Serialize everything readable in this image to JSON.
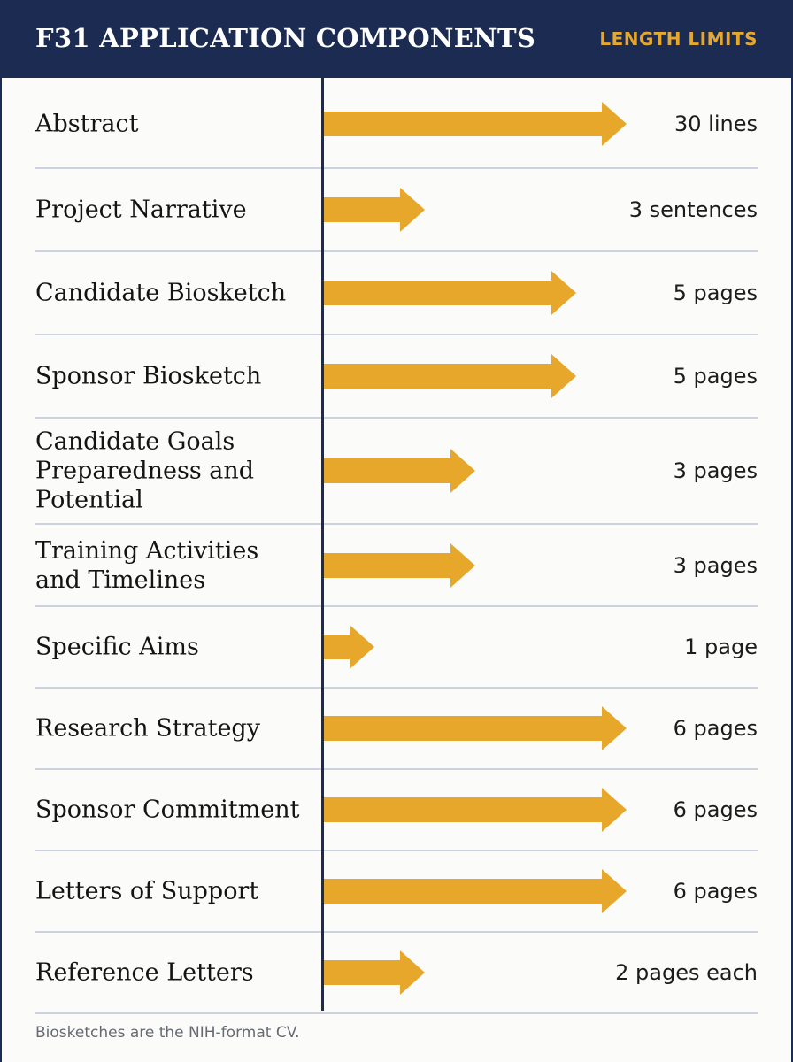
{
  "header": {
    "title": "F31 APPLICATION COMPONENTS",
    "limits_label": "LENGTH LIMITS"
  },
  "colors": {
    "header_bg": "#1b2b52",
    "arrow": "#e6a72b",
    "divider": "#ccd3df"
  },
  "footnote": "Biosketches are the NIH-format CV.",
  "chart_data": {
    "type": "bar",
    "orientation": "horizontal",
    "marker": "arrow",
    "title": "F31 APPLICATION COMPONENTS",
    "value_label": "LENGTH LIMITS",
    "rows": [
      {
        "label": "Abstract",
        "limit": "30 lines",
        "length": 6
      },
      {
        "label": "Project Narrative",
        "limit": "3 sentences",
        "length": 2
      },
      {
        "label": "Candidate Biosketch",
        "limit": "5 pages",
        "length": 5
      },
      {
        "label": "Sponsor Biosketch",
        "limit": "5 pages",
        "length": 5
      },
      {
        "label": "Candidate Goals\nPreparedness and\nPotential",
        "limit": "3 pages",
        "length": 3
      },
      {
        "label": "Training Activities\nand Timelines",
        "limit": "3 pages",
        "length": 3
      },
      {
        "label": "Specific Aims",
        "limit": "1 page",
        "length": 1
      },
      {
        "label": "Research Strategy",
        "limit": "6 pages",
        "length": 6
      },
      {
        "label": "Sponsor Commitment",
        "limit": "6 pages",
        "length": 6
      },
      {
        "label": "Letters of Support",
        "limit": "6 pages",
        "length": 6
      },
      {
        "label": "Reference Letters",
        "limit": "2 pages each",
        "length": 2
      }
    ]
  }
}
